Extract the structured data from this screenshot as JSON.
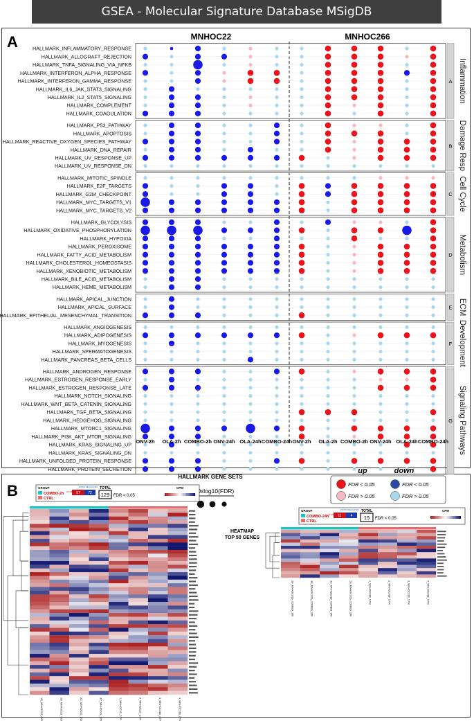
{
  "page_title": "GSEA - Molecular Signature Database MSigDB",
  "panel_a_label": "A",
  "panel_b_label": "B",
  "chart_data": {
    "type": "bubble-heatmap",
    "cell_lines": [
      "MNHOC22",
      "MNHOC266"
    ],
    "conditions": [
      "ONV-2h",
      "OLA-2h",
      "COMBO-2h",
      "ONV-24h",
      "OLA-24h",
      "COMBO-24h",
      "ONV-2h",
      "OLA-2h",
      "COMBO-2h",
      "ONV-24h",
      "OLA-24h",
      "COMBO-24h"
    ],
    "legend": {
      "axis_title": "HALLMARK GENE SETS",
      "size_label": "-10xlog10(FDR)",
      "up_label": "up",
      "down_label": "down",
      "up_sig": "FDR < 0.05",
      "up_ns": "FDR > 0.05",
      "down_sig": "FDR < 0.05",
      "down_ns": "FDR > 0.05"
    },
    "colors": {
      "up_sig": "#e8141c",
      "up_ns": "#f7b8c4",
      "down_sig": "#1a1ae6",
      "down_ns": "#a9d8ec"
    },
    "groups": [
      {
        "name": "Inflammation",
        "letter": "A",
        "genesets": [
          {
            "name": "HALLMARK_INFLAMMATORY_RESPONSE",
            "cells": [
              "c",
              "s",
              "N",
              "c",
              "p",
              "c",
              "c",
              "R",
              "R",
              "R",
              "c",
              "R"
            ]
          },
          {
            "name": "HALLMARK_ALLOGRAFT_REJECTION",
            "cells": [
              "N",
              "c",
              "N",
              "N",
              "p",
              "c",
              "c",
              "R",
              "R",
              "R",
              "p",
              "R"
            ]
          },
          {
            "name": "HALLMARK_TNFA_SIGNALING_VIA_NFKB",
            "cells": [
              "c",
              "c",
              "B",
              "c",
              "p",
              "c",
              "c",
              "R",
              "R",
              "R",
              "c",
              "R"
            ]
          },
          {
            "name": "HALLMARK_INTERFERON_ALPHA_RESPONSE",
            "cells": [
              "N",
              "c",
              "N",
              "p",
              "R",
              "R",
              "c",
              "R",
              "R",
              "R",
              "N",
              "R"
            ]
          },
          {
            "name": "HALLMARK_INTERFERON_GAMMA_RESPONSE",
            "cells": [
              "c",
              "c",
              "N",
              "p",
              "R",
              "R",
              "c",
              "R",
              "R",
              "R",
              "c",
              "R"
            ]
          },
          {
            "name": "HALLMARK_IL6_JAK_STAT3_SIGNALING",
            "cells": [
              "c",
              "N",
              "c",
              "c",
              "c",
              "c",
              "c",
              "R",
              "R",
              "R",
              "c",
              "R"
            ]
          },
          {
            "name": "HALLMARK_IL2_STAT5_SIGNALING",
            "cells": [
              "c",
              "N",
              "N",
              "c",
              "p",
              "c",
              "c",
              "R",
              "R",
              "R",
              "c",
              "R"
            ]
          },
          {
            "name": "HALLMARK_COMPLEMENT",
            "cells": [
              "c",
              "N",
              "N",
              "c",
              "p",
              "c",
              "c",
              "R",
              "p",
              "R",
              "c",
              "R"
            ]
          },
          {
            "name": "HALLMARK_COAGULATION",
            "cells": [
              "N",
              "N",
              "N",
              "c",
              "c",
              "c",
              "c",
              "R",
              "c",
              "R",
              "c",
              "R"
            ]
          }
        ]
      },
      {
        "name": "Damage Resp",
        "letter": "B",
        "genesets": [
          {
            "name": "HALLMARK_P53_PATHWAY",
            "cells": [
              "c",
              "N",
              "N",
              "c",
              "c",
              "N",
              "c",
              "R",
              "p",
              "p",
              "c",
              "R"
            ]
          },
          {
            "name": "HALLMARK_APOPTOSIS",
            "cells": [
              "c",
              "N",
              "N",
              "c",
              "c",
              "N",
              "c",
              "R",
              "R",
              "R",
              "c",
              "R"
            ]
          },
          {
            "name": "HALLMARK_REACTIVE_OXYGEN_SPECIES_PATHWAY",
            "cells": [
              "N",
              "N",
              "N",
              "c",
              "c",
              "N",
              "c",
              "R",
              "p",
              "R",
              "R",
              "R"
            ]
          },
          {
            "name": "HALLMARK_DNA_REPAIR",
            "cells": [
              "c",
              "N",
              "N",
              "c",
              "N",
              "c",
              "c",
              "R",
              "p",
              "R",
              "R",
              "R"
            ]
          },
          {
            "name": "HALLMARK_UV_RESPONSE_UP",
            "cells": [
              "N",
              "N",
              "N",
              "N",
              "N",
              "N",
              "R",
              "c",
              "p",
              "R",
              "R",
              "R"
            ]
          },
          {
            "name": "HALLMARK_UV_RESPONSE_DN",
            "cells": [
              "c",
              "c",
              "c",
              "c",
              "c",
              "c",
              "c",
              "c",
              "c",
              "c",
              "c",
              "c"
            ]
          }
        ]
      },
      {
        "name": "Cell Cycle",
        "letter": "C",
        "genesets": [
          {
            "name": "HALLMARK_MITOTIC_SPINDLE",
            "cells": [
              "c",
              "c",
              "c",
              "c",
              "c",
              "c",
              "c",
              "c",
              "c",
              "p",
              "p",
              "p"
            ]
          },
          {
            "name": "HALLMARK_E2F_TARGETS",
            "cells": [
              "N",
              "c",
              "c",
              "N",
              "N",
              "c",
              "R",
              "N",
              "R",
              "R",
              "R",
              "R"
            ]
          },
          {
            "name": "HALLMARK_G2M_CHECKPOINT",
            "cells": [
              "N",
              "c",
              "c",
              "N",
              "N",
              "c",
              "R",
              "N",
              "R",
              "R",
              "R",
              "R"
            ]
          },
          {
            "name": "HALLMARK_MYC_TARGETS_V1",
            "cells": [
              "B",
              "N",
              "N",
              "N",
              "N",
              "N",
              "R",
              "c",
              "R",
              "R",
              "R",
              "R"
            ]
          },
          {
            "name": "HALLMARK_MYC_TARGETS_V2",
            "cells": [
              "N",
              "N",
              "N",
              "N",
              "N",
              "N",
              "R",
              "c",
              "R",
              "R",
              "R",
              "R"
            ]
          }
        ]
      },
      {
        "name": "Metabolism",
        "letter": "D",
        "genesets": [
          {
            "name": "HALLMARK_GLYCOLYSIS",
            "cells": [
              "N",
              "N",
              "N",
              "c",
              "c",
              "N",
              "c",
              "N",
              "p",
              "p",
              "c",
              "R"
            ]
          },
          {
            "name": "HALLMARK_OXIDATIVE_PHOSPHORYLATION",
            "cells": [
              "B",
              "B",
              "B",
              "N",
              "N",
              "N",
              "R",
              "c",
              "R",
              "R",
              "B",
              "R"
            ]
          },
          {
            "name": "HALLMARK_HYPOXIA",
            "cells": [
              "N",
              "N",
              "N",
              "c",
              "c",
              "N",
              "c",
              "c",
              "R",
              "c",
              "c",
              "R"
            ]
          },
          {
            "name": "HALLMARK_PEROXISOME",
            "cells": [
              "N",
              "N",
              "N",
              "N",
              "N",
              "N",
              "R",
              "c",
              "p",
              "R",
              "R",
              "R"
            ]
          },
          {
            "name": "HALLMARK_FATTY_ACID_METABOLISM",
            "cells": [
              "N",
              "N",
              "N",
              "N",
              "N",
              "N",
              "R",
              "c",
              "p",
              "R",
              "R",
              "R"
            ]
          },
          {
            "name": "HALLMARK_CHOLESTEROL_HOMEOSTASIS",
            "cells": [
              "N",
              "N",
              "N",
              "N",
              "N",
              "N",
              "R",
              "c",
              "p",
              "R",
              "R",
              "R"
            ]
          },
          {
            "name": "HALLMARK_XENOBIOTIC_METABOLISM",
            "cells": [
              "N",
              "N",
              "N",
              "N",
              "N",
              "N",
              "R",
              "c",
              "p",
              "R",
              "R",
              "R"
            ]
          },
          {
            "name": "HALLMARK_BILE_ACID_METABOLISM",
            "cells": [
              "c",
              "N",
              "N",
              "c",
              "c",
              "c",
              "c",
              "c",
              "c",
              "c",
              "c",
              "c"
            ]
          },
          {
            "name": "HALLMARK_HEME_METABOLISM",
            "cells": [
              "c",
              "N",
              "N",
              "c",
              "c",
              "c",
              "c",
              "c",
              "c",
              "c",
              "c",
              "c"
            ]
          }
        ]
      },
      {
        "name": "ECM",
        "letter": "E",
        "genesets": [
          {
            "name": "HALLMARK_APICAL_JUNCTION",
            "cells": [
              "c",
              "N",
              "c",
              "c",
              "c",
              "c",
              "c",
              "c",
              "c",
              "c",
              "c",
              "c"
            ]
          },
          {
            "name": "HALLMARK_APICAL_SURFACE",
            "cells": [
              "c",
              "N",
              "c",
              "c",
              "c",
              "c",
              "c",
              "c",
              "c",
              "c",
              "c",
              "c"
            ]
          },
          {
            "name": "HALLMARK_EPITHELIAL_MESENCHYMAL_TRANSITION",
            "cells": [
              "N",
              "N",
              "N",
              "c",
              "c",
              "c",
              "R",
              "c",
              "c",
              "c",
              "c",
              "c"
            ]
          }
        ]
      },
      {
        "name": "Development",
        "letter": "F",
        "genesets": [
          {
            "name": "HALLMARK_ANGIOGENESIS",
            "cells": [
              "c",
              "c",
              "c",
              "c",
              "c",
              "c",
              "c",
              "c",
              "c",
              "c",
              "c",
              "c"
            ]
          },
          {
            "name": "HALLMARK_ADIPOGENESIS",
            "cells": [
              "N",
              "N",
              "N",
              "N",
              "N",
              "N",
              "R",
              "c",
              "p",
              "R",
              "R",
              "R"
            ]
          },
          {
            "name": "HALLMARK_MYOGENESIS",
            "cells": [
              "c",
              "N",
              "c",
              "c",
              "c",
              "c",
              "c",
              "c",
              "c",
              "c",
              "c",
              "c"
            ]
          },
          {
            "name": "HALLMARK_SPERMATOGENESIS",
            "cells": [
              "c",
              "c",
              "c",
              "c",
              "c",
              "c",
              "c",
              "c",
              "c",
              "c",
              "c",
              "c"
            ]
          },
          {
            "name": "HALLMARK_PANCREAS_BETA_CELLS",
            "cells": [
              "c",
              "c",
              "c",
              "c",
              "N",
              "c",
              "c",
              "c",
              "c",
              "c",
              "c",
              "c"
            ]
          }
        ]
      },
      {
        "name": "Signaling Pathways",
        "letter": "G",
        "genesets": [
          {
            "name": "HALLMARK_ANDROGEN_RESPONSE",
            "cells": [
              "N",
              "N",
              "N",
              "c",
              "c",
              "N",
              "R",
              "c",
              "p",
              "R",
              "R",
              "R"
            ]
          },
          {
            "name": "HALLMARK_ESTROGEN_RESPONSE_EARLY",
            "cells": [
              "c",
              "N",
              "c",
              "c",
              "c",
              "c",
              "c",
              "c",
              "c",
              "p",
              "p",
              "R"
            ]
          },
          {
            "name": "HALLMARK_ESTROGEN_RESPONSE_LATE",
            "cells": [
              "N",
              "N",
              "N",
              "c",
              "c",
              "c",
              "c",
              "c",
              "c",
              "R",
              "R",
              "R"
            ]
          },
          {
            "name": "HALLMARK_NOTCH_SIGNALING",
            "cells": [
              "c",
              "c",
              "c",
              "c",
              "c",
              "c",
              "c",
              "c",
              "c",
              "c",
              "c",
              "c"
            ]
          },
          {
            "name": "HALLMARK_WNT_BETA_CATENIN_SIGNALING",
            "cells": [
              "c",
              "c",
              "c",
              "c",
              "c",
              "c",
              "c",
              "c",
              "c",
              "c",
              "c",
              "c"
            ]
          },
          {
            "name": "HALLMARK_TGF_BETA_SIGNALING",
            "cells": [
              "c",
              "c",
              "c",
              "c",
              "c",
              "c",
              "R",
              "R",
              "R",
              "c",
              "c",
              "R"
            ]
          },
          {
            "name": "HALLMARK_HEDGEHOG_SIGNALING",
            "cells": [
              "c",
              "c",
              "c",
              "c",
              "c",
              "c",
              "c",
              "c",
              "c",
              "c",
              "c",
              "c"
            ]
          },
          {
            "name": "HALLMARK_MTORC1_SIGNALING",
            "cells": [
              "B",
              "N",
              "N",
              "N",
              "B",
              "N",
              "R",
              "c",
              "R",
              "R",
              "R",
              "R"
            ]
          },
          {
            "name": "HALLMARK_PI3K_AKT_MTOR_SIGNALING",
            "cells": [
              "N",
              "N",
              "N",
              "c",
              "c",
              "c",
              "R",
              "c",
              "p",
              "R",
              "R",
              "R"
            ]
          },
          {
            "name": "HALLMARK_KRAS_SIGNALING_UP",
            "cells": [
              "c",
              "N",
              "c",
              "c",
              "c",
              "c",
              "c",
              "c",
              "c",
              "c",
              "R",
              "R"
            ]
          },
          {
            "name": "HALLMARK_KRAS_SIGNALING_DN",
            "cells": [
              "c",
              "c",
              "c",
              "c",
              "c",
              "c",
              "c",
              "c",
              "c",
              "c",
              "c",
              "c"
            ]
          },
          {
            "name": "HALLMARK_UNFOLDED_PROTEIN_RESPONSE",
            "cells": [
              "N",
              "N",
              "N",
              "c",
              "c",
              "N",
              "R",
              "c",
              "R",
              "R",
              "R",
              "R"
            ]
          },
          {
            "name": "HALLMARK_PROTEIN_SECRETION",
            "cells": [
              "N",
              "N",
              "N",
              "c",
              "c",
              "c",
              "c",
              "c",
              "c",
              "c",
              "c",
              "R"
            ]
          }
        ]
      }
    ]
  },
  "heatmap": {
    "title_line1": "HEATMAP",
    "title_line2": "TOP 50 GENES",
    "left": {
      "group_label": "GROUP",
      "legend": [
        "COMBO-2h",
        "CTRL"
      ],
      "up_label": "UP-REGULATED",
      "down_label": "DOWN-REGULATED",
      "up_count": "57",
      "down_count": "72",
      "total_label": "TOTAL",
      "total": "129",
      "fdr": "FDR < 0.05",
      "cpm_label": "CPM",
      "columns": [
        "1B_MNHOC22_COMBO_2h",
        "2B_MNHOC22_COMBO_2h",
        "2C_MNHOC22_COMBO_2h",
        "3C_MNHOC22_COMBO_2h",
        "1_MNHOC22_CTR",
        "2_MNHOC22_CTR",
        "3_MNHOC266_CTR",
        "4_MNHOC266_CTR"
      ]
    },
    "right": {
      "group_label": "GROUP",
      "legend": [
        "COMBO-24h",
        "CTRL"
      ],
      "up_label": "UP-REGULATED",
      "down_label": "DOWN-REGULATED",
      "up_count": "11",
      "down_count": "4",
      "total_label": "TOTAL",
      "total": "15",
      "fdr": "FDR < 0.05",
      "cpm_label": "CPM",
      "columns": [
        "2B_MNHOC266_COMBO_24h",
        "3B_MNHOC266_COMBO_24h",
        "3C_MNHOC266_COMBO_24h",
        "1B_MNHOC266_COMBO_24h",
        "1_MNHOC266_CTR",
        "2_MNHOC266_CTR",
        "3_MNHOC266_CTR",
        "4_MNHOC266_CTR"
      ]
    }
  }
}
